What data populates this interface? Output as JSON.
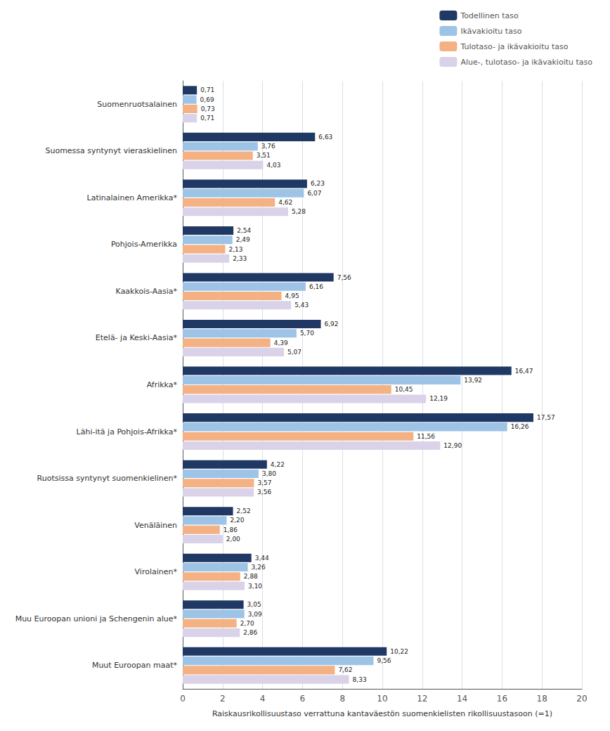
{
  "chart_data": {
    "type": "bar",
    "orientation": "horizontal",
    "categories": [
      "Suomenruotsalainen",
      "Suomessa syntynyt vieraskielinen",
      "Latinalainen Amerikka*",
      "Pohjois-Amerikka",
      "Kaakkois-Aasia*",
      "Etelä- ja Keski-Aasia*",
      "Afrikka*",
      "Lähi-itä ja Pohjois-Afrikka*",
      "Ruotsissa syntynyt suomenkielinen*",
      "Venäläinen",
      "Virolainen*",
      "Muu Euroopan unioni ja Schengenin alue*",
      "Muut Euroopan maat*"
    ],
    "series": [
      {
        "name": "Todellinen taso",
        "color": "#1F3864",
        "values": [
          0.71,
          6.63,
          6.23,
          2.54,
          7.56,
          6.92,
          16.47,
          17.57,
          4.22,
          2.52,
          3.44,
          3.05,
          10.22
        ],
        "value_labels": [
          "0,71",
          "6,63",
          "6,23",
          "2,54",
          "7,56",
          "6,92",
          "16,47",
          "17,57",
          "4,22",
          "2,52",
          "3,44",
          "3,05",
          "10,22"
        ]
      },
      {
        "name": "Ikävakioitu taso",
        "color": "#9DC3E6",
        "values": [
          0.69,
          3.76,
          6.07,
          2.49,
          6.16,
          5.7,
          13.92,
          16.26,
          3.8,
          2.2,
          3.26,
          3.09,
          9.56
        ],
        "value_labels": [
          "0,69",
          "3,76",
          "6,07",
          "2,49",
          "6,16",
          "5,70",
          "13,92",
          "16,26",
          "3,80",
          "2,20",
          "3,26",
          "3,09",
          "9,56"
        ]
      },
      {
        "name": "Tulotaso- ja ikävakioitu taso",
        "color": "#F4B183",
        "values": [
          0.73,
          3.51,
          4.62,
          2.13,
          4.95,
          4.39,
          10.45,
          11.56,
          3.57,
          1.86,
          2.88,
          2.7,
          7.62
        ],
        "value_labels": [
          "0,73",
          "3,51",
          "4,62",
          "2,13",
          "4,95",
          "4,39",
          "10,45",
          "11,56",
          "3,57",
          "1,86",
          "2,88",
          "2,70",
          "7,62"
        ]
      },
      {
        "name": "Alue-, tulotaso- ja ikävakioitu taso",
        "color": "#D9D2E9",
        "values": [
          0.71,
          4.03,
          5.28,
          2.33,
          5.43,
          5.07,
          12.19,
          12.9,
          3.56,
          2.0,
          3.1,
          2.86,
          8.33
        ],
        "value_labels": [
          "0,71",
          "4,03",
          "5,28",
          "2,33",
          "5,43",
          "5,07",
          "12,19",
          "12,90",
          "3,56",
          "2,00",
          "3,10",
          "2,86",
          "8,33"
        ]
      }
    ],
    "xlabel": "Raiskausrikollisuustaso verrattuna kantaväestön suomenkielisten rikollisuustasoon (=1)",
    "xlim": [
      0,
      20
    ],
    "xticks": [
      0,
      2,
      4,
      6,
      8,
      10,
      12,
      14,
      16,
      18,
      20
    ],
    "grid": true,
    "legend": "upper right",
    "data_labels": true
  }
}
